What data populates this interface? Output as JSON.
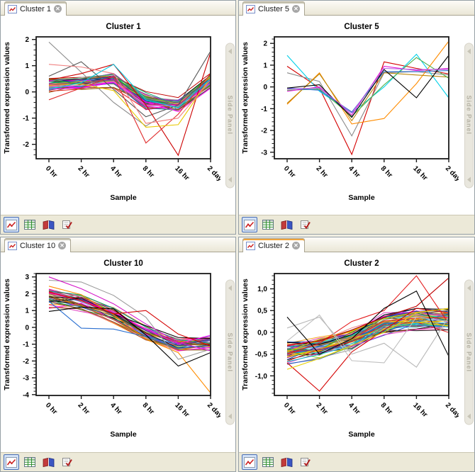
{
  "app": {
    "side_panel_label": "Side Panel",
    "accent_active_tab": "#f0a43c",
    "toolbar_bg": "#ece9d8"
  },
  "palette": [
    "#c00000",
    "#e31a1c",
    "#f08080",
    "#ff7f00",
    "#f5a623",
    "#e6c700",
    "#b5a642",
    "#8b6914",
    "#2ca02c",
    "#4daf4a",
    "#90d040",
    "#00a86b",
    "#00c8c8",
    "#30d5e8",
    "#1f77b4",
    "#2255cc",
    "#16489c",
    "#6a3dbf",
    "#9932cc",
    "#c71585",
    "#e040c0",
    "#ff00ff",
    "#f781bf",
    "#8b4513",
    "#a0522d",
    "#000000",
    "#222222",
    "#444444",
    "#6e6e6e",
    "#9a9a9a"
  ],
  "panels": [
    {
      "tab": {
        "label": "Cluster 1",
        "icon": "line-chart-icon",
        "close": "close-icon",
        "active": false
      },
      "toolbar": [
        {
          "name": "graph-view",
          "selected": true
        },
        {
          "name": "table-view",
          "selected": false
        },
        {
          "name": "book-view",
          "selected": false
        },
        {
          "name": "notes-view",
          "selected": false
        }
      ],
      "chart_data": {
        "type": "line",
        "title": "Cluster 1",
        "xlabel": "Sample",
        "ylabel": "Transformed expression values",
        "categories": [
          "0 hr",
          "2 hr",
          "4 hr",
          "8 hr",
          "16 hr",
          "2 days"
        ],
        "y_ticks": [
          -2,
          -1,
          0,
          1,
          2
        ],
        "y_tick_labels": [
          "-2",
          "-1",
          "0",
          "1",
          "2"
        ],
        "ylim": [
          -2.55,
          2.1
        ],
        "minor_per_major": 5,
        "grid": false,
        "legend": "none",
        "n_random_lines": 44,
        "seed": 7,
        "mean": [
          0.3,
          0.32,
          0.45,
          -0.35,
          -0.5,
          0.4
        ],
        "spread": [
          0.3,
          0.28,
          0.33,
          0.38,
          0.28,
          0.35
        ],
        "outlier_series": [
          {
            "color": "#8a8a8a",
            "values": [
              1.9,
              0.75,
              -0.4,
              -1.3,
              -0.55,
              0.5
            ]
          },
          {
            "color": "#555555",
            "values": [
              0.6,
              1.15,
              0.1,
              -0.95,
              -0.5,
              1.55
            ]
          },
          {
            "color": "#cc0000",
            "values": [
              0.45,
              0.7,
              1.05,
              -0.5,
              -2.42,
              1.5
            ]
          },
          {
            "color": "#e03030",
            "values": [
              -0.3,
              0.15,
              0.6,
              -1.95,
              -0.85,
              0.7
            ]
          },
          {
            "color": "#f08080",
            "values": [
              1.05,
              0.95,
              0.7,
              -1.2,
              -1.0,
              0.45
            ]
          },
          {
            "color": "#e8c800",
            "values": [
              0.25,
              0.3,
              0.05,
              -1.35,
              -1.25,
              0.55
            ]
          },
          {
            "color": "#00c8e0",
            "values": [
              0.1,
              0.35,
              1.05,
              -0.3,
              -0.6,
              0.5
            ]
          }
        ]
      }
    },
    {
      "tab": {
        "label": "Cluster 5",
        "icon": "line-chart-icon",
        "close": "close-icon",
        "active": false
      },
      "toolbar": [
        {
          "name": "graph-view",
          "selected": true
        },
        {
          "name": "table-view",
          "selected": false
        },
        {
          "name": "book-view",
          "selected": false
        },
        {
          "name": "notes-view",
          "selected": false
        }
      ],
      "chart_data": {
        "type": "line",
        "title": "Cluster 5",
        "xlabel": "Sample",
        "ylabel": "Transformed expression values",
        "categories": [
          "0 hr",
          "2 hr",
          "4 hr",
          "8 hr",
          "16 hr",
          "2 days"
        ],
        "y_ticks": [
          -3,
          -2,
          -1,
          0,
          1,
          2
        ],
        "y_tick_labels": [
          "-3",
          "-2",
          "-1",
          "0",
          "1",
          "2"
        ],
        "ylim": [
          -3.3,
          2.3
        ],
        "minor_per_major": 5,
        "grid": false,
        "legend": "none",
        "n_random_lines": 0,
        "seed": 1,
        "mean": [
          0,
          0,
          0,
          0,
          0,
          0
        ],
        "spread": [
          0,
          0,
          0,
          0,
          0,
          0
        ],
        "outlier_series": [
          {
            "color": "#d40000",
            "values": [
              0.95,
              -0.05,
              -3.1,
              1.15,
              0.85,
              0.6
            ]
          },
          {
            "color": "#8a8a8a",
            "values": [
              0.65,
              0.25,
              -2.25,
              0.65,
              0.7,
              0.55
            ]
          },
          {
            "color": "#00d0e8",
            "values": [
              1.45,
              -0.2,
              -1.2,
              0.0,
              1.5,
              -0.5
            ]
          },
          {
            "color": "#ff8c00",
            "values": [
              -0.8,
              0.65,
              -1.7,
              -1.45,
              0.15,
              2.1
            ]
          },
          {
            "color": "#b8860b",
            "values": [
              -0.75,
              0.6,
              -1.55,
              0.65,
              0.55,
              0.45
            ]
          },
          {
            "color": "#4daf4a",
            "values": [
              -0.15,
              -0.1,
              -1.35,
              0.1,
              1.35,
              0.4
            ]
          },
          {
            "color": "#e018d8",
            "values": [
              -0.2,
              0.0,
              -1.3,
              0.95,
              0.75,
              0.85
            ]
          },
          {
            "color": "#2a6fd0",
            "values": [
              -0.05,
              -0.15,
              -1.15,
              0.7,
              0.7,
              0.75
            ]
          },
          {
            "color": "#000000",
            "values": [
              -0.05,
              0.1,
              -1.4,
              0.8,
              -0.5,
              1.45
            ]
          },
          {
            "color": "#b060e0",
            "values": [
              -0.1,
              -0.05,
              -1.2,
              0.85,
              0.8,
              0.8
            ]
          }
        ]
      }
    },
    {
      "tab": {
        "label": "Cluster 10",
        "icon": "line-chart-icon",
        "close": "close-icon",
        "active": false
      },
      "toolbar": [
        {
          "name": "graph-view",
          "selected": true
        },
        {
          "name": "table-view",
          "selected": false
        },
        {
          "name": "book-view",
          "selected": false
        },
        {
          "name": "notes-view",
          "selected": false
        }
      ],
      "chart_data": {
        "type": "line",
        "title": "Cluster 10",
        "xlabel": "Sample",
        "ylabel": "Transformed expression values",
        "categories": [
          "0 hr",
          "2 hr",
          "4 hr",
          "8 hr",
          "16 hr",
          "2 days"
        ],
        "y_ticks": [
          -4,
          -3,
          -2,
          -1,
          0,
          1,
          2,
          3
        ],
        "y_tick_labels": [
          "-4",
          "-3",
          "-2",
          "-1",
          "0",
          "1",
          "2",
          "3"
        ],
        "ylim": [
          -4.05,
          3.2
        ],
        "minor_per_major": 5,
        "grid": false,
        "legend": "none",
        "n_random_lines": 36,
        "seed": 13,
        "mean": [
          1.7,
          1.45,
          0.7,
          -0.35,
          -1.05,
          -0.95
        ],
        "spread": [
          0.6,
          0.55,
          0.5,
          0.45,
          0.42,
          0.45
        ],
        "outlier_series": [
          {
            "color": "#ff8c00",
            "values": [
              2.45,
              1.95,
              0.75,
              -0.7,
              -1.5,
              -3.9
            ]
          },
          {
            "color": "#9a9a9a",
            "values": [
              2.8,
              2.7,
              1.9,
              0.6,
              -1.9,
              -1.3
            ]
          },
          {
            "color": "#2a6fd0",
            "values": [
              1.55,
              -0.05,
              -0.1,
              -0.55,
              -1.25,
              -1.05
            ]
          },
          {
            "color": "#000000",
            "values": [
              0.95,
              1.2,
              1.1,
              -0.45,
              -2.3,
              -1.5
            ]
          },
          {
            "color": "#d40000",
            "values": [
              2.1,
              1.6,
              0.8,
              1.0,
              -0.4,
              -1.1
            ]
          },
          {
            "color": "#d414c8",
            "values": [
              3.0,
              2.3,
              1.4,
              0.2,
              -0.9,
              -1.4
            ]
          }
        ]
      }
    },
    {
      "tab": {
        "label": "Cluster 2",
        "icon": "line-chart-icon",
        "close": "close-icon",
        "active": true
      },
      "toolbar": [
        {
          "name": "graph-view",
          "selected": true
        },
        {
          "name": "table-view",
          "selected": false
        },
        {
          "name": "book-view",
          "selected": false
        },
        {
          "name": "notes-view",
          "selected": false
        }
      ],
      "chart_data": {
        "type": "line",
        "title": "Cluster 2",
        "xlabel": "Sample",
        "ylabel": "Transformed expression values",
        "categories": [
          "0 hr",
          "2 hr",
          "4 hr",
          "8 hr",
          "16 hr",
          "2 days"
        ],
        "y_ticks": [
          -1,
          -0.5,
          0,
          0.5,
          1
        ],
        "y_tick_labels": [
          "-1,0",
          "-0,5",
          "0,0",
          "0,5",
          "1,0"
        ],
        "ylim": [
          -1.45,
          1.35
        ],
        "minor_per_major": 5,
        "grid": false,
        "legend": "none",
        "n_random_lines": 58,
        "seed": 21,
        "mean": [
          -0.45,
          -0.35,
          -0.15,
          0.2,
          0.3,
          0.3
        ],
        "spread": [
          0.27,
          0.24,
          0.28,
          0.26,
          0.28,
          0.3
        ],
        "outlier_series": [
          {
            "color": "#d40000",
            "values": [
              -0.7,
              -1.35,
              -0.45,
              0.05,
              0.55,
              0.45
            ]
          },
          {
            "color": "#e31a1c",
            "values": [
              -0.5,
              -0.25,
              0.25,
              0.5,
              1.3,
              0.2
            ]
          },
          {
            "color": "#c00000",
            "values": [
              -0.3,
              -0.2,
              0.05,
              0.35,
              0.6,
              1.25
            ]
          },
          {
            "color": "#c0c0c0",
            "values": [
              -0.2,
              0.4,
              -0.65,
              -0.7,
              0.35,
              0.25
            ]
          },
          {
            "color": "#b8b8b8",
            "values": [
              0.1,
              0.35,
              -0.5,
              -0.25,
              -0.8,
              0.35
            ]
          },
          {
            "color": "#000000",
            "values": [
              0.35,
              -0.5,
              -0.15,
              0.55,
              0.95,
              -0.55
            ]
          },
          {
            "color": "#e8d000",
            "values": [
              -0.85,
              -0.6,
              -0.3,
              0.0,
              0.45,
              0.55
            ]
          }
        ]
      }
    }
  ]
}
